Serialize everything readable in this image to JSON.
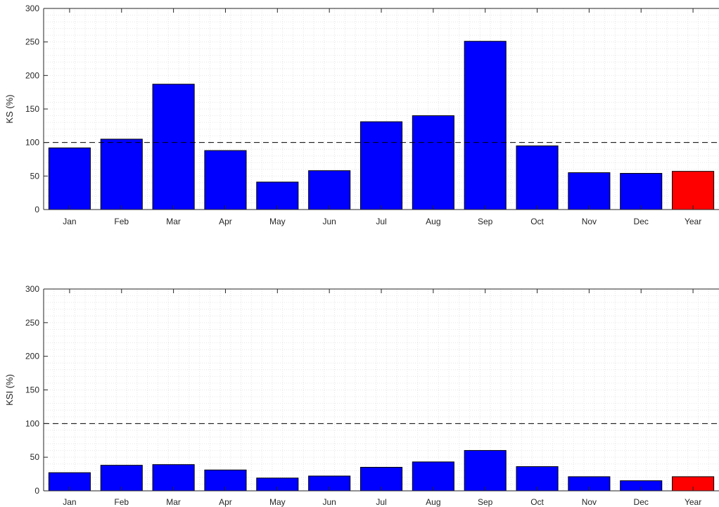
{
  "colors": {
    "bar_month": "#0000ff",
    "bar_year": "#ff0000",
    "reference_line": "#000000",
    "grid": "#e6e6e6",
    "axes": "#262626"
  },
  "chart_data": [
    {
      "type": "bar",
      "title": "",
      "xlabel": "",
      "ylabel": "KS (%)",
      "categories": [
        "Jan",
        "Feb",
        "Mar",
        "Apr",
        "May",
        "Jun",
        "Jul",
        "Aug",
        "Sep",
        "Oct",
        "Nov",
        "Dec",
        "Year"
      ],
      "values": [
        92,
        105,
        187,
        88,
        41,
        58,
        131,
        140,
        251,
        95,
        55,
        54,
        57
      ],
      "bar_colors": [
        "blue",
        "blue",
        "blue",
        "blue",
        "blue",
        "blue",
        "blue",
        "blue",
        "blue",
        "blue",
        "blue",
        "blue",
        "red"
      ],
      "ylim": [
        0,
        300
      ],
      "yticks": [
        0,
        50,
        100,
        150,
        200,
        250,
        300
      ],
      "reference_line": {
        "y": 100,
        "style": "dashed"
      },
      "grid": "minor dotted"
    },
    {
      "type": "bar",
      "title": "",
      "xlabel": "",
      "ylabel": "KSI (%)",
      "categories": [
        "Jan",
        "Feb",
        "Mar",
        "Apr",
        "May",
        "Jun",
        "Jul",
        "Aug",
        "Sep",
        "Oct",
        "Nov",
        "Dec",
        "Year"
      ],
      "values": [
        27,
        38,
        39,
        31,
        19,
        22,
        35,
        43,
        60,
        36,
        21,
        15,
        21
      ],
      "bar_colors": [
        "blue",
        "blue",
        "blue",
        "blue",
        "blue",
        "blue",
        "blue",
        "blue",
        "blue",
        "blue",
        "blue",
        "blue",
        "red"
      ],
      "ylim": [
        0,
        300
      ],
      "yticks": [
        0,
        50,
        100,
        150,
        200,
        250,
        300
      ],
      "reference_line": {
        "y": 100,
        "style": "dashed"
      },
      "grid": "minor dotted"
    }
  ]
}
